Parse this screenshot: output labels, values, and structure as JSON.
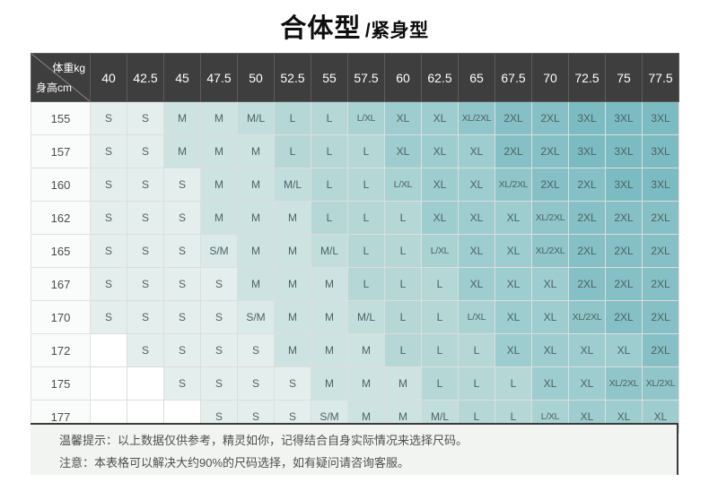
{
  "title": {
    "primary": "合体型",
    "secondary": "/紧身型"
  },
  "chart_data": {
    "type": "table",
    "title": "合体型 /紧身型",
    "col_header_label": "体重kg",
    "row_header_label": "身高cm",
    "columns": [
      "40",
      "42.5",
      "45",
      "47.5",
      "50",
      "52.5",
      "55",
      "57.5",
      "60",
      "62.5",
      "65",
      "67.5",
      "70",
      "72.5",
      "75",
      "77.5"
    ],
    "rows": [
      {
        "height": "155",
        "sizes": [
          "S",
          "S",
          "M",
          "M",
          "M/L",
          "L",
          "L",
          "L/XL",
          "XL",
          "XL",
          "XL/2XL",
          "2XL",
          "2XL",
          "3XL",
          "3XL",
          "3XL"
        ]
      },
      {
        "height": "157",
        "sizes": [
          "S",
          "S",
          "M",
          "M",
          "M",
          "L",
          "L",
          "L",
          "XL",
          "XL",
          "XL",
          "2XL",
          "2XL",
          "3XL",
          "3XL",
          "3XL"
        ]
      },
      {
        "height": "160",
        "sizes": [
          "S",
          "S",
          "S",
          "M",
          "M",
          "M/L",
          "L",
          "L",
          "L/XL",
          "XL",
          "XL",
          "XL/2XL",
          "2XL",
          "2XL",
          "3XL",
          "3XL"
        ]
      },
      {
        "height": "162",
        "sizes": [
          "S",
          "S",
          "S",
          "M",
          "M",
          "M",
          "L",
          "L",
          "L",
          "XL",
          "XL",
          "XL",
          "XL/2XL",
          "2XL",
          "2XL",
          "2XL"
        ]
      },
      {
        "height": "165",
        "sizes": [
          "S",
          "S",
          "S",
          "S/M",
          "M",
          "M",
          "M/L",
          "L",
          "L",
          "L/XL",
          "XL",
          "XL",
          "XL/2XL",
          "2XL",
          "2XL",
          "2XL"
        ]
      },
      {
        "height": "167",
        "sizes": [
          "S",
          "S",
          "S",
          "S",
          "M",
          "M",
          "M",
          "L",
          "L",
          "L",
          "XL",
          "XL",
          "XL",
          "2XL",
          "2XL",
          "2XL"
        ]
      },
      {
        "height": "170",
        "sizes": [
          "S",
          "S",
          "S",
          "S",
          "S/M",
          "M",
          "M",
          "M/L",
          "L",
          "L",
          "L/XL",
          "XL",
          "XL",
          "XL/2XL",
          "2XL",
          "2XL"
        ]
      },
      {
        "height": "172",
        "sizes": [
          "",
          "S",
          "S",
          "S",
          "S",
          "M",
          "M",
          "M",
          "L",
          "L",
          "L",
          "XL",
          "XL",
          "XL",
          "XL",
          "2XL"
        ]
      },
      {
        "height": "175",
        "sizes": [
          "",
          "",
          "S",
          "S",
          "S",
          "S",
          "M",
          "M",
          "M",
          "L",
          "L",
          "L",
          "XL",
          "XL",
          "XL/2XL",
          "XL/2XL"
        ]
      },
      {
        "height": "177",
        "sizes": [
          "",
          "",
          "",
          "S",
          "S",
          "S",
          "S/M",
          "M",
          "M",
          "M/L",
          "L",
          "L",
          "L/XL",
          "XL",
          "XL",
          "XL"
        ]
      }
    ]
  },
  "notes": {
    "line1": "温馨提示：以上数据仅供参考，精灵如你，记得结合自身实际情况来选择尺码。",
    "line2": "注意：本表格可以解决大约90%的尺码选择，如有疑问请咨询客服。"
  },
  "colors": {
    "header_bg": "#3e3e3e",
    "header_text": "#ffffff",
    "cell_text": "#4e6263",
    "grid_line": "#dddddd",
    "notes_bg": "#f1f4f0",
    "notes_border": "#3a3a3a",
    "size_shades": {
      "": "#ffffff",
      "S": "#e4efed",
      "S/M": "#d9eae8",
      "M": "#cde3e1",
      "M/L": "#c1dddc",
      "L": "#b5d8d7",
      "L/XL": "#a9d2d3",
      "XL": "#9dcdcf",
      "XL/2XL": "#90c6ca",
      "2XL": "#84c0c5",
      "3XL": "#7bbcc2"
    }
  }
}
